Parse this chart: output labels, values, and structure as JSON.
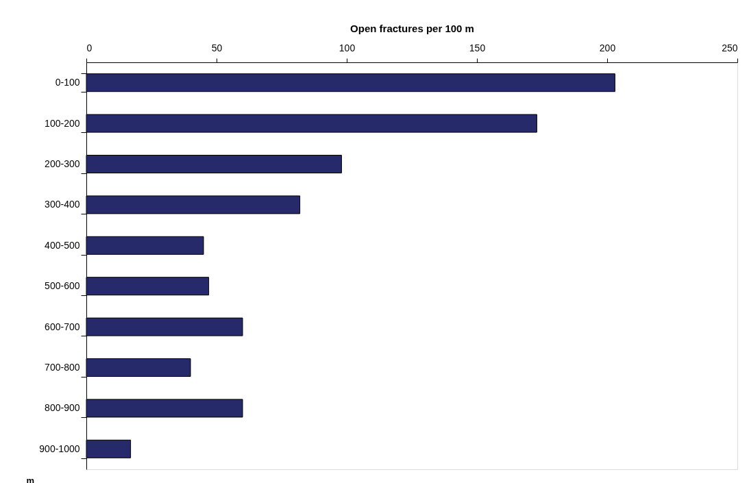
{
  "chart_data": {
    "type": "bar",
    "orientation": "horizontal",
    "xlabel": "Open fractures per 100 m",
    "ylabel": "m",
    "categories": [
      "0-100",
      "100-200",
      "200-300",
      "300-400",
      "400-500",
      "500-600",
      "600-700",
      "700-800",
      "800-900",
      "900-1000"
    ],
    "values": [
      203,
      173,
      98,
      82,
      45,
      47,
      60,
      40,
      60,
      17
    ],
    "color": "#262a6b",
    "xlim": [
      0,
      250
    ],
    "xticks": [
      0,
      50,
      100,
      150,
      200,
      250
    ],
    "grid": false
  }
}
